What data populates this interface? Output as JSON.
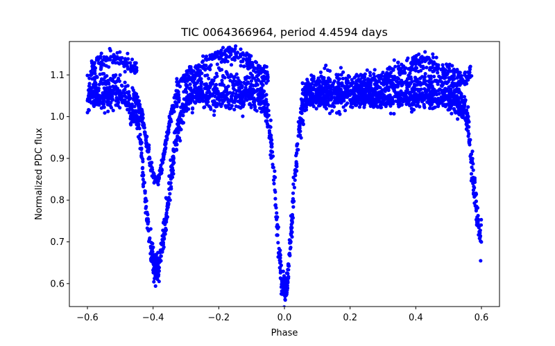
{
  "chart_data": {
    "type": "scatter",
    "title": "TIC 0064366964, period 4.4594 days",
    "xlabel": "Phase",
    "ylabel": "Normalized PDC flux",
    "xlim": [
      -0.655,
      0.655
    ],
    "ylim": [
      0.545,
      1.18
    ],
    "xticks": [
      -0.6,
      -0.4,
      -0.2,
      0.0,
      0.2,
      0.4,
      0.6
    ],
    "xtick_labels": [
      "−0.6",
      "−0.4",
      "−0.2",
      "0.0",
      "0.2",
      "0.4",
      "0.6"
    ],
    "yticks": [
      0.6,
      0.7,
      0.8,
      0.9,
      1.0,
      1.1
    ],
    "ytick_labels": [
      "0.6",
      "0.7",
      "0.8",
      "0.9",
      "1.0",
      "1.1"
    ],
    "grid": false,
    "series": [
      {
        "name": "flux",
        "color": "#0000ff",
        "marker": "circle",
        "phase_range": [
          -0.6,
          0.6
        ],
        "baseline_flux": 1.045,
        "primary_eclipse": {
          "phase": 0.0,
          "min_flux": 0.57,
          "half_width": 0.05
        },
        "secondary_eclipse": {
          "phase": -0.39,
          "min_flux": 0.62,
          "half_width": 0.075
        },
        "secondary_eclipse_repeat": {
          "phase": 0.61,
          "min_flux": 0.68,
          "half_width": 0.075
        },
        "inner_dip": {
          "phase": -0.39,
          "min_flux": 0.85
        },
        "upper_arc_max_flux": 1.15,
        "shoulder_peak_flux": 1.12
      }
    ]
  }
}
